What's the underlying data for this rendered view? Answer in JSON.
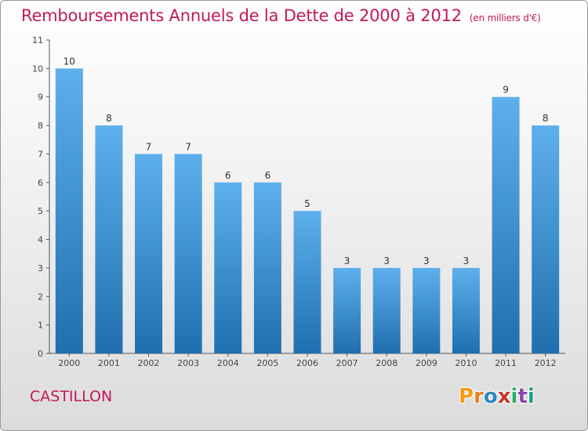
{
  "header": {
    "title": "Remboursements Annuels de la Dette de 2000 à 2012",
    "unit": "(en milliers d'€)"
  },
  "footer": {
    "commune": "CASTILLON",
    "logo_letters": [
      "P",
      "r",
      "o",
      "x",
      "i",
      "t",
      "i"
    ],
    "logo_colors": [
      "#f39c12",
      "#e67e22",
      "#2e86c1",
      "#c0392b",
      "#27ae60",
      "#8e44ad",
      "#16a085"
    ]
  },
  "colors": {
    "bar_top": "#5eb0ec",
    "bar_bottom": "#1f6fb0",
    "title": "#c2185b"
  },
  "chart_data": {
    "type": "bar",
    "title": "Remboursements Annuels de la Dette de 2000 à 2012",
    "xlabel": "",
    "ylabel": "",
    "categories": [
      "2000",
      "2001",
      "2002",
      "2003",
      "2004",
      "2005",
      "2006",
      "2007",
      "2008",
      "2009",
      "2010",
      "2011",
      "2012"
    ],
    "values": [
      10,
      8,
      7,
      7,
      6,
      6,
      5,
      3,
      3,
      3,
      3,
      9,
      8
    ],
    "ylim": [
      0,
      11
    ],
    "yticks": [
      0,
      1,
      2,
      3,
      4,
      5,
      6,
      7,
      8,
      9,
      10,
      11
    ],
    "grid": false
  }
}
